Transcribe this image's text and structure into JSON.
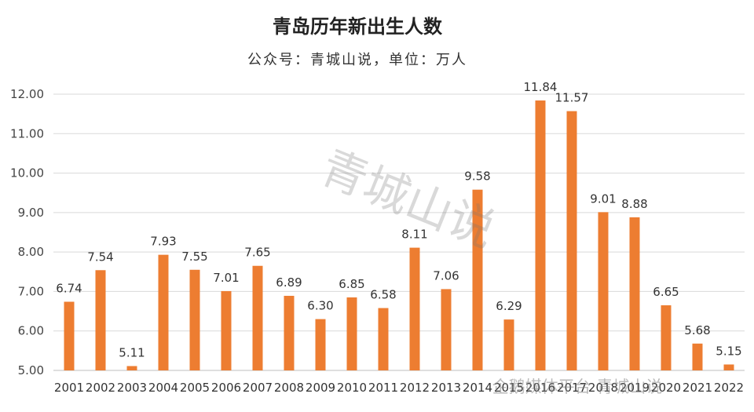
{
  "chart_data": {
    "type": "bar",
    "title": "青岛历年新出生人数",
    "subtitle": "公众号：青城山说，单位：万人",
    "categories": [
      "2001",
      "2002",
      "2003",
      "2004",
      "2005",
      "2006",
      "2007",
      "2008",
      "2009",
      "2010",
      "2011",
      "2012",
      "2013",
      "2014",
      "2015",
      "2016",
      "2017",
      "2018",
      "2019",
      "2020",
      "2021",
      "2022"
    ],
    "values": [
      6.74,
      7.54,
      5.11,
      7.93,
      7.55,
      7.01,
      7.65,
      6.89,
      6.3,
      6.85,
      6.58,
      8.11,
      7.06,
      9.58,
      6.29,
      11.84,
      11.57,
      9.01,
      8.88,
      6.65,
      5.68,
      5.15
    ],
    "value_labels": [
      "6.74",
      "7.54",
      "5.11",
      "7.93",
      "7.55",
      "7.01",
      "7.65",
      "6.89",
      "6.30",
      "6.85",
      "6.58",
      "8.11",
      "7.06",
      "9.58",
      "6.29",
      "11.84",
      "11.57",
      "9.01",
      "8.88",
      "6.65",
      "5.68",
      "5.15"
    ],
    "ylim": [
      5.0,
      12.0
    ],
    "yticks": [
      "5.00",
      "6.00",
      "7.00",
      "8.00",
      "9.00",
      "10.00",
      "11.00",
      "12.00"
    ],
    "xlabel": "",
    "ylabel": "",
    "grid": true,
    "bar_color": "#ED7D31"
  },
  "watermark": "青城山说",
  "credit": "企鹅媒体平台 青城山说"
}
